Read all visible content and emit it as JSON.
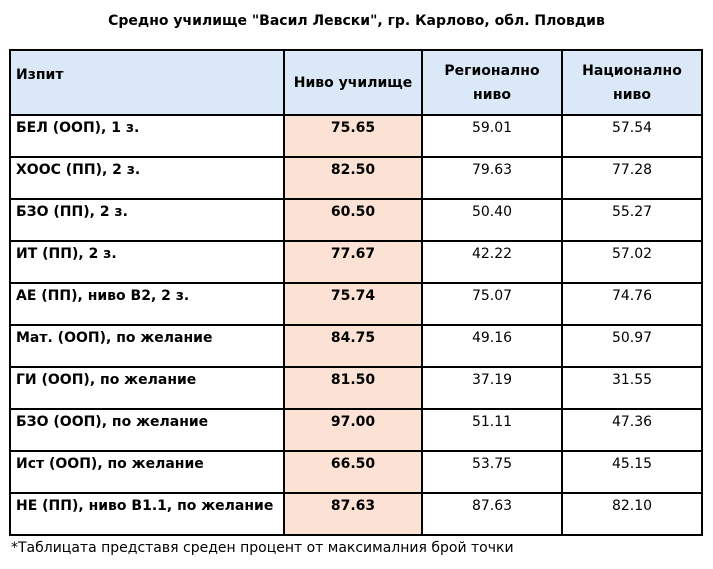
{
  "title": "Средно училище \"Васил Левски\", гр. Карлово, обл. Пловдив",
  "table": {
    "header": [
      "Изпит",
      "Ниво училище",
      "Регионално ниво",
      "Национално ниво"
    ],
    "rows": [
      [
        "БЕЛ (ООП), 1 з.",
        "75.65",
        "59.01",
        "57.54"
      ],
      [
        "ХООС (ПП), 2 з.",
        "82.50",
        "79.63",
        "77.28"
      ],
      [
        "БЗО (ПП), 2 з.",
        "60.50",
        "50.40",
        "55.27"
      ],
      [
        "ИТ (ПП), 2 з.",
        "77.67",
        "42.22",
        "57.02"
      ],
      [
        "АЕ (ПП), ниво В2, 2 з.",
        "75.74",
        "75.07",
        "74.76"
      ],
      [
        "Мат. (ООП), по желание",
        "84.75",
        "49.16",
        "50.97"
      ],
      [
        "ГИ (ООП), по желание",
        "81.50",
        "37.19",
        "31.55"
      ],
      [
        "БЗО (ООП), по желание",
        "97.00",
        "51.11",
        "47.36"
      ],
      [
        "Ист (ООП), по желание",
        "66.50",
        "53.75",
        "45.15"
      ],
      [
        "НЕ (ПП), ниво В1.1, по желание",
        "87.63",
        "87.63",
        "82.10"
      ]
    ]
  },
  "footnote": "*Таблицата представя среден процент от максималния брой точки"
}
